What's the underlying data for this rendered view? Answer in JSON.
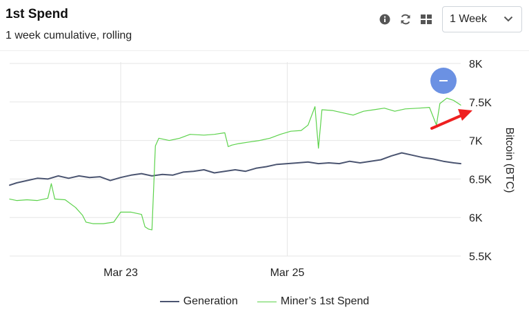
{
  "header": {
    "title": "1st Spend",
    "subtitle": "1 week cumulative, rolling"
  },
  "toolbar": {
    "info_icon": "info-icon",
    "refresh_icon": "refresh-icon",
    "grid_icon": "grid-icon",
    "range_value": "1 Week"
  },
  "colors": {
    "generation": "#4a5470",
    "spend": "#5bd24a",
    "grid": "#e6e6e6",
    "annotation_arrow": "#ee2020",
    "zoom_button": "#6b91e3"
  },
  "legend": {
    "generation": "Generation",
    "spend": "Miner’s 1st Spend"
  },
  "chart_data": {
    "type": "line",
    "title": "1st Spend",
    "subtitle": "1 week cumulative, rolling",
    "xlabel": "",
    "ylabel": "Bitcoin (BTC)",
    "x_range": [
      "Mar 21 16:00",
      "Mar 27 02:00"
    ],
    "x_ticks": [
      "Mar 23",
      "Mar 25"
    ],
    "ylim": [
      5500,
      8000
    ],
    "y_ticks": [
      5500,
      6000,
      6500,
      7000,
      7500,
      8000
    ],
    "y_tick_labels": [
      "5.5K",
      "6K",
      "6.5K",
      "7K",
      "7.5K",
      "8K"
    ],
    "grid": true,
    "legend_position": "bottom",
    "series": [
      {
        "name": "Generation",
        "key": "generation",
        "points": [
          [
            "Mar 21 16:00",
            6420
          ],
          [
            "Mar 21 18:00",
            6450
          ],
          [
            "Mar 21 21:00",
            6480
          ],
          [
            "Mar 22 00:00",
            6510
          ],
          [
            "Mar 22 03:00",
            6500
          ],
          [
            "Mar 22 06:00",
            6540
          ],
          [
            "Mar 22 09:00",
            6510
          ],
          [
            "Mar 22 12:00",
            6540
          ],
          [
            "Mar 22 15:00",
            6520
          ],
          [
            "Mar 22 18:00",
            6530
          ],
          [
            "Mar 22 21:00",
            6480
          ],
          [
            "Mar 23 00:00",
            6520
          ],
          [
            "Mar 23 03:00",
            6550
          ],
          [
            "Mar 23 06:00",
            6570
          ],
          [
            "Mar 23 09:00",
            6540
          ],
          [
            "Mar 23 12:00",
            6560
          ],
          [
            "Mar 23 15:00",
            6550
          ],
          [
            "Mar 23 18:00",
            6590
          ],
          [
            "Mar 23 21:00",
            6600
          ],
          [
            "Mar 24 00:00",
            6620
          ],
          [
            "Mar 24 03:00",
            6580
          ],
          [
            "Mar 24 06:00",
            6600
          ],
          [
            "Mar 24 09:00",
            6620
          ],
          [
            "Mar 24 12:00",
            6600
          ],
          [
            "Mar 24 15:00",
            6640
          ],
          [
            "Mar 24 18:00",
            6660
          ],
          [
            "Mar 24 21:00",
            6690
          ],
          [
            "Mar 25 00:00",
            6700
          ],
          [
            "Mar 25 03:00",
            6710
          ],
          [
            "Mar 25 06:00",
            6720
          ],
          [
            "Mar 25 09:00",
            6700
          ],
          [
            "Mar 25 12:00",
            6710
          ],
          [
            "Mar 25 15:00",
            6700
          ],
          [
            "Mar 25 18:00",
            6730
          ],
          [
            "Mar 25 21:00",
            6710
          ],
          [
            "Mar 26 00:00",
            6730
          ],
          [
            "Mar 26 03:00",
            6750
          ],
          [
            "Mar 26 06:00",
            6800
          ],
          [
            "Mar 26 09:00",
            6840
          ],
          [
            "Mar 26 12:00",
            6810
          ],
          [
            "Mar 26 15:00",
            6780
          ],
          [
            "Mar 26 18:00",
            6760
          ],
          [
            "Mar 26 21:00",
            6730
          ],
          [
            "Mar 27 00:00",
            6710
          ],
          [
            "Mar 27 02:00",
            6700
          ]
        ]
      },
      {
        "name": "Miner’s 1st Spend",
        "key": "spend",
        "points": [
          [
            "Mar 21 16:00",
            6240
          ],
          [
            "Mar 21 18:00",
            6220
          ],
          [
            "Mar 21 21:00",
            6230
          ],
          [
            "Mar 22 00:00",
            6220
          ],
          [
            "Mar 22 03:00",
            6250
          ],
          [
            "Mar 22 04:00",
            6440
          ],
          [
            "Mar 22 05:00",
            6240
          ],
          [
            "Mar 22 08:00",
            6230
          ],
          [
            "Mar 22 11:00",
            6130
          ],
          [
            "Mar 22 13:00",
            6030
          ],
          [
            "Mar 22 14:00",
            5940
          ],
          [
            "Mar 22 16:00",
            5920
          ],
          [
            "Mar 22 19:00",
            5920
          ],
          [
            "Mar 22 22:00",
            5940
          ],
          [
            "Mar 23 00:00",
            6070
          ],
          [
            "Mar 23 03:00",
            6070
          ],
          [
            "Mar 23 06:00",
            6040
          ],
          [
            "Mar 23 07:00",
            5880
          ],
          [
            "Mar 23 08:00",
            5850
          ],
          [
            "Mar 23 09:00",
            5840
          ],
          [
            "Mar 23 10:00",
            6930
          ],
          [
            "Mar 23 11:00",
            7030
          ],
          [
            "Mar 23 14:00",
            7000
          ],
          [
            "Mar 23 17:00",
            7030
          ],
          [
            "Mar 23 20:00",
            7080
          ],
          [
            "Mar 24 00:00",
            7070
          ],
          [
            "Mar 24 03:00",
            7080
          ],
          [
            "Mar 24 06:00",
            7100
          ],
          [
            "Mar 24 07:00",
            6920
          ],
          [
            "Mar 24 08:00",
            6940
          ],
          [
            "Mar 24 10:00",
            6960
          ],
          [
            "Mar 24 13:00",
            6980
          ],
          [
            "Mar 24 16:00",
            7000
          ],
          [
            "Mar 24 19:00",
            7030
          ],
          [
            "Mar 24 22:00",
            7080
          ],
          [
            "Mar 25 01:00",
            7120
          ],
          [
            "Mar 25 04:00",
            7130
          ],
          [
            "Mar 25 06:00",
            7200
          ],
          [
            "Mar 25 08:00",
            7440
          ],
          [
            "Mar 25 09:00",
            6900
          ],
          [
            "Mar 25 10:00",
            7400
          ],
          [
            "Mar 25 13:00",
            7390
          ],
          [
            "Mar 25 16:00",
            7360
          ],
          [
            "Mar 25 19:00",
            7330
          ],
          [
            "Mar 25 22:00",
            7380
          ],
          [
            "Mar 26 01:00",
            7400
          ],
          [
            "Mar 26 04:00",
            7420
          ],
          [
            "Mar 26 07:00",
            7380
          ],
          [
            "Mar 26 10:00",
            7410
          ],
          [
            "Mar 26 14:00",
            7420
          ],
          [
            "Mar 26 17:00",
            7430
          ],
          [
            "Mar 26 19:00",
            7200
          ],
          [
            "Mar 26 20:00",
            7480
          ],
          [
            "Mar 26 22:00",
            7550
          ],
          [
            "Mar 27 00:00",
            7520
          ],
          [
            "Mar 27 02:00",
            7460
          ]
        ]
      }
    ]
  }
}
